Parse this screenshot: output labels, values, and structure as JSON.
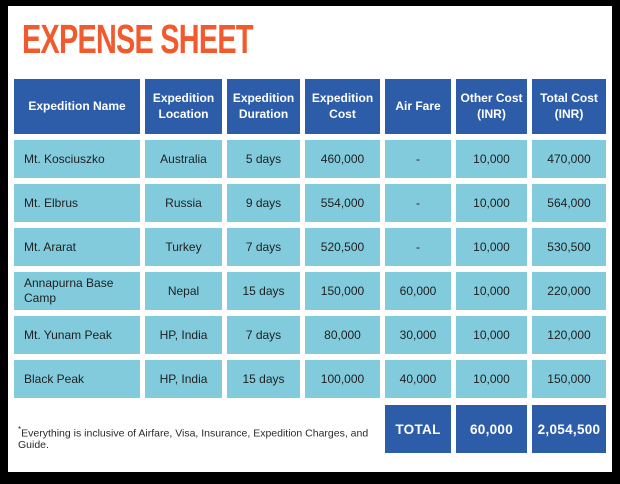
{
  "title": "EXPENSE SHEET",
  "colors": {
    "title_accent": "#f05a2d",
    "header_bg": "#2d5da9",
    "cell_bg": "#82cbdc",
    "frame_border": "#000000"
  },
  "table": {
    "columns": [
      "Expedition Name",
      "Expedition Location",
      "Expedition Duration",
      "Expedition Cost",
      "Air Fare",
      "Other Cost (INR)",
      "Total Cost (INR)"
    ],
    "rows": [
      [
        "Mt. Kosciuszko",
        "Australia",
        "5 days",
        "460,000",
        "-",
        "10,000",
        "470,000"
      ],
      [
        "Mt. Elbrus",
        "Russia",
        "9 days",
        "554,000",
        "-",
        "10,000",
        "564,000"
      ],
      [
        "Mt. Ararat",
        "Turkey",
        "7 days",
        "520,500",
        "-",
        "10,000",
        "530,500"
      ],
      [
        "Annapurna Base Camp",
        "Nepal",
        "15 days",
        "150,000",
        "60,000",
        "10,000",
        "220,000"
      ],
      [
        "Mt. Yunam Peak",
        "HP, India",
        "7 days",
        "80,000",
        "30,000",
        "10,000",
        "120,000"
      ],
      [
        "Black Peak",
        "HP, India",
        "15 days",
        "100,000",
        "40,000",
        "10,000",
        "150,000"
      ]
    ],
    "total_row": {
      "label": "TOTAL",
      "other_cost_total": "60,000",
      "total_cost_total": "2,054,500"
    }
  },
  "footnote": {
    "marker": "*",
    "text": "Everything is inclusive of Airfare, Visa, Insurance, Expedition Charges, and Guide."
  }
}
